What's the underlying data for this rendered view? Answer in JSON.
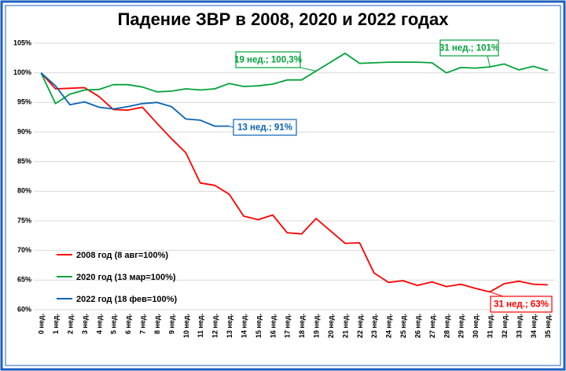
{
  "chart_data": {
    "type": "line",
    "title": "Падение ЗВР в 2008, 2020 и 2022 годах",
    "categories": [
      "0 нед.",
      "1 нед.",
      "2 нед.",
      "3 нед.",
      "4 нед.",
      "5 нед.",
      "6 нед.",
      "7 нед.",
      "8 нед.",
      "9 нед.",
      "10 нед.",
      "11 нед.",
      "12 нед.",
      "13 нед.",
      "14 нед.",
      "15 нед.",
      "16 нед.",
      "17 нед.",
      "18 нед.",
      "19 нед.",
      "20 нед.",
      "21 нед.",
      "22 нед.",
      "23 нед.",
      "24 нед.",
      "25 нед.",
      "26 нед.",
      "27 нед.",
      "28 нед.",
      "29 нед.",
      "30 нед.",
      "31 нед.",
      "32 нед.",
      "33 нед.",
      "34 нед.",
      "35 нед."
    ],
    "series": [
      {
        "name": "2008 год (8 авг=100%)",
        "color": "#ff0000",
        "values": [
          100,
          97.3,
          97.4,
          97.5,
          96.0,
          93.8,
          93.7,
          94.2,
          91.5,
          88.9,
          86.5,
          81.4,
          81.0,
          79.5,
          75.8,
          75.2,
          76.0,
          73.0,
          72.8,
          75.4,
          73.3,
          71.2,
          71.3,
          66.2,
          64.6,
          64.9,
          64.1,
          64.7,
          63.9,
          64.3,
          63.6,
          63.0,
          64.4,
          64.8,
          64.3,
          64.2
        ]
      },
      {
        "name": "2020 год (13 мар=100%)",
        "color": "#00a339",
        "values": [
          100,
          94.8,
          96.4,
          97.1,
          97.2,
          98.0,
          98.0,
          97.6,
          96.8,
          96.9,
          97.3,
          97.1,
          97.3,
          98.2,
          97.7,
          97.8,
          98.1,
          98.8,
          98.8,
          100.3,
          101.8,
          103.3,
          101.6,
          101.7,
          101.8,
          101.8,
          101.8,
          101.7,
          100.0,
          100.9,
          100.8,
          101.0,
          101.5,
          100.5,
          101.1,
          100.4
        ]
      },
      {
        "name": "2022 год (18 фев=100%)",
        "color": "#0a64b4",
        "values": [
          100,
          97.8,
          94.6,
          95.1,
          94.2,
          93.9,
          94.3,
          94.8,
          95.0,
          94.3,
          92.2,
          92.0,
          91.0,
          91.0,
          null,
          null,
          null,
          null,
          null,
          null,
          null,
          null,
          null,
          null,
          null,
          null,
          null,
          null,
          null,
          null,
          null,
          null,
          null,
          null,
          null,
          null
        ]
      }
    ],
    "annotations": [
      "19 нед.; 100,3%",
      "31 нед.; 101%",
      "13 нед.; 91%",
      "31 нед.; 63%"
    ],
    "ylim": [
      60,
      105
    ],
    "yticks": [
      {
        "value": 60,
        "label": "60%"
      },
      {
        "value": 65,
        "label": "65%"
      },
      {
        "value": 70,
        "label": "70%"
      },
      {
        "value": 75,
        "label": "75%"
      },
      {
        "value": 80,
        "label": "80%"
      },
      {
        "value": 85,
        "label": "85%"
      },
      {
        "value": 90,
        "label": "90%"
      },
      {
        "value": 95,
        "label": "95%"
      },
      {
        "value": 100,
        "label": "100%"
      },
      {
        "value": 105,
        "label": "105%"
      }
    ],
    "grid": true,
    "legend": "lower left"
  }
}
